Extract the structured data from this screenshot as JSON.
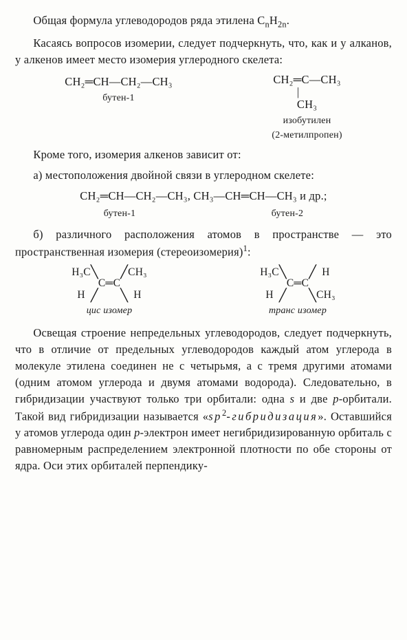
{
  "p1_a": "Общая формула углеводородов ряда этилена C",
  "p1_n": "n",
  "p1_b": "H",
  "p1_2n": "2n",
  "p1_c": ".",
  "p2": "Касаясь вопросов изомерии, следует подчеркнуть, что, как и у алканов, у алкенов имеет место изомерия углеродного скелета:",
  "f1": "CH₂═CH—CH₂—CH₃",
  "f1_lbl": "бутен-1",
  "f2_l1": "CH₂═C—CH₃",
  "f2_l2": "        |",
  "f2_l3": "        CH₃",
  "f2_lbl": "изобутилен",
  "f2_lbl2": "(2-метилпропен)",
  "p3": "Кроме того, изомерия алкенов зависит от:",
  "p4": "а) местоположения двойной связи в углеродном скелете:",
  "f3": "CH₂═CH—CH₂—CH₃,  CH₃—CH═CH—CH₃ и др.;",
  "f3_lbl1": "бутен-1",
  "f3_lbl2": "бутен-2",
  "p5a": "б) различного расположения атомов в пространстве — это пространственная изомерия (стереоизомерия)",
  "p5b": "1",
  "p5c": ":",
  "cis": {
    "tl": "H₃C",
    "tr": "CH₃",
    "bl": "H",
    "br": "H",
    "mid": "C═C",
    "lbl": "цис изомер"
  },
  "trans": {
    "tl": "H₃C",
    "tr": "H",
    "bl": "H",
    "br": "CH₃",
    "mid": "C═C",
    "lbl": "транс изомер"
  },
  "p6a": "Освещая строение непредельных углеводородов, следует подчеркнуть, что в отличие от предельных углеводородов каждый атом углерода в молекуле этилена соединен не с четырьмя, а с тремя другими атомами (одним атомом углерода и двумя атомами водорода). Следовательно, в гибридизации участвуют только три орбитали: одна ",
  "p6b": "s",
  "p6c": " и две ",
  "p6d": "p",
  "p6e": "-орбитали. Такой вид гибридизации называется «",
  "p6f": "sp",
  "p6g": "2",
  "p6h": "-гибридизация",
  "p6i": "». Оставшийся у атомов углерода один ",
  "p6j": "p",
  "p6k": "-электрон имеет негибридизированную орбиталь с равномерным распределением электронной плотности по обе стороны от ядра. Оси этих орбиталей перпендику-"
}
